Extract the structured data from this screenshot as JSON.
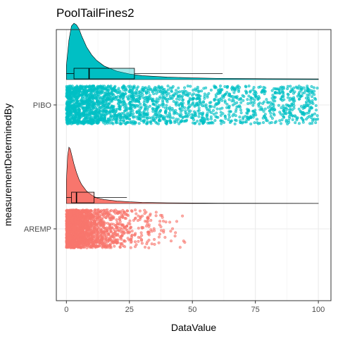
{
  "chart_data": {
    "type": "raincloud",
    "title": "PoolTailFines2",
    "xlabel": "DataValue",
    "ylabel": "measurementDeterminedBy",
    "xlim": [
      -4,
      105
    ],
    "xticks": [
      0,
      25,
      50,
      75,
      100
    ],
    "grid": true,
    "legend": "none",
    "categories": [
      "AREMP",
      "PIBO"
    ],
    "series": [
      {
        "name": "PIBO",
        "color": "#00BFC4",
        "box": {
          "whisker_low": 0,
          "q1": 3,
          "median": 9,
          "q3": 27,
          "whisker_high": 62
        },
        "density": {
          "x": [
            0,
            1,
            2,
            3,
            4,
            5,
            6,
            8,
            10,
            12,
            15,
            20,
            25,
            30,
            40,
            50,
            60,
            70,
            80,
            90,
            100
          ],
          "y": [
            0.25,
            0.7,
            0.95,
            1.0,
            0.97,
            0.9,
            0.78,
            0.58,
            0.44,
            0.34,
            0.24,
            0.15,
            0.1,
            0.07,
            0.045,
            0.03,
            0.022,
            0.018,
            0.015,
            0.013,
            0.012
          ]
        },
        "points": {
          "count": 2200,
          "distribution": "uniform-to-skewed"
        }
      },
      {
        "name": "AREMP",
        "color": "#F8766D",
        "box": {
          "whisker_low": 0,
          "q1": 2,
          "median": 4,
          "q3": 11,
          "whisker_high": 24
        },
        "density": {
          "x": [
            0,
            0.5,
            1,
            1.5,
            2,
            3,
            4,
            5,
            6,
            8,
            10,
            12,
            15,
            20,
            25,
            30,
            40,
            50,
            60,
            80,
            100
          ],
          "y": [
            0.4,
            0.85,
            1.0,
            0.97,
            0.88,
            0.7,
            0.55,
            0.43,
            0.34,
            0.22,
            0.15,
            0.1,
            0.07,
            0.045,
            0.03,
            0.02,
            0.012,
            0.008,
            0.006,
            0.004,
            0.003
          ]
        },
        "points": {
          "count": 1800,
          "distribution": "right-skewed"
        }
      }
    ]
  }
}
